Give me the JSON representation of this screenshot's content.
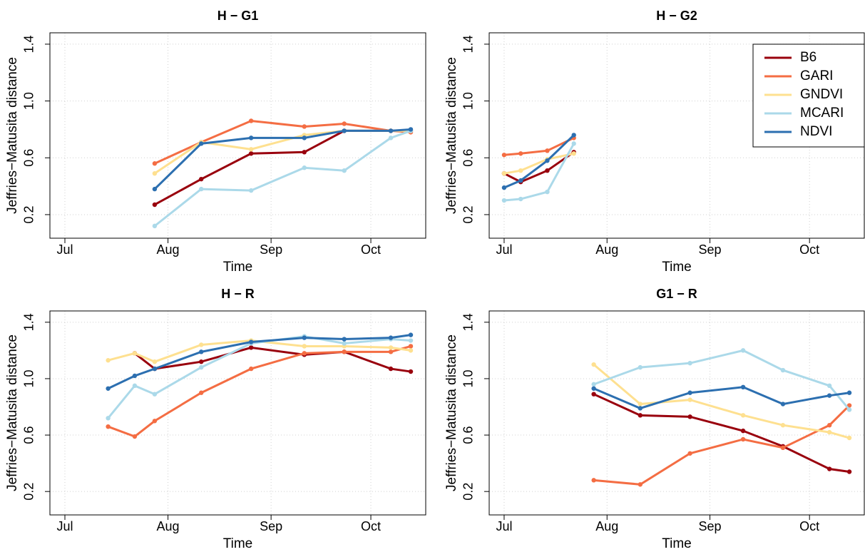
{
  "chart_data": [
    {
      "type": "line",
      "title": "H − G1",
      "xlabel": "Time",
      "ylabel": "Jeffries−Matusita distance",
      "x": [
        209,
        223,
        238,
        254,
        266,
        280,
        286
      ],
      "xlim": [
        177.5,
        290.5
      ],
      "xticks": [
        {
          "value": 182,
          "label": "Jul"
        },
        {
          "value": 213,
          "label": "Aug"
        },
        {
          "value": 244,
          "label": "Sep"
        },
        {
          "value": 274,
          "label": "Oct"
        }
      ],
      "ylim": [
        0.034,
        1.48
      ],
      "yticks": [
        0.2,
        0.6,
        {
          "value": 1,
          "label": "1.0"
        },
        1.4
      ],
      "grid": true,
      "series": [
        {
          "color": "#99000d",
          "values": [
            0.27,
            0.45,
            0.63,
            0.64,
            0.79,
            0.79,
            0.79
          ]
        },
        {
          "color": "#f46d43",
          "values": [
            0.56,
            0.71,
            0.86,
            0.82,
            0.84,
            0.79,
            0.78
          ]
        },
        {
          "color": "#fee090",
          "values": [
            0.49,
            0.71,
            0.66,
            0.76,
            0.79,
            0.79,
            0.79
          ]
        },
        {
          "color": "#abd9e9",
          "values": [
            0.12,
            0.38,
            0.37,
            0.53,
            0.51,
            0.74,
            0.79
          ]
        },
        {
          "color": "#2c6fb0",
          "values": [
            0.38,
            0.7,
            0.74,
            0.74,
            0.79,
            0.79,
            0.8
          ]
        }
      ]
    },
    {
      "type": "line",
      "title": "H − G2",
      "xlabel": "Time",
      "ylabel": "Jeffries−Matusita distance",
      "x": [
        182,
        187,
        195,
        203
      ],
      "xlim": [
        177.5,
        290.5
      ],
      "xticks": [
        {
          "value": 182,
          "label": "Jul"
        },
        {
          "value": 213,
          "label": "Aug"
        },
        {
          "value": 244,
          "label": "Sep"
        },
        {
          "value": 274,
          "label": "Oct"
        }
      ],
      "ylim": [
        0.034,
        1.48
      ],
      "yticks": [
        0.2,
        0.6,
        {
          "value": 1,
          "label": "1.0"
        },
        1.4
      ],
      "grid": true,
      "legend": "topright",
      "series": [
        {
          "name": "B6",
          "color": "#99000d",
          "values": [
            0.49,
            0.43,
            0.51,
            0.64
          ]
        },
        {
          "name": "GARI",
          "color": "#f46d43",
          "values": [
            0.62,
            0.63,
            0.65,
            0.74
          ]
        },
        {
          "name": "GNDVI",
          "color": "#fee090",
          "values": [
            0.49,
            0.51,
            0.59,
            0.63
          ]
        },
        {
          "name": "MCARI",
          "color": "#abd9e9",
          "values": [
            0.3,
            0.31,
            0.36,
            0.7
          ]
        },
        {
          "name": "NDVI",
          "color": "#2c6fb0",
          "values": [
            0.39,
            0.44,
            0.58,
            0.76
          ]
        }
      ]
    },
    {
      "type": "line",
      "title": "H − R",
      "xlabel": "Time",
      "ylabel": "Jeffries−Matusita distance",
      "x": [
        195,
        203,
        209,
        223,
        238,
        254,
        266,
        280,
        286
      ],
      "xlim": [
        177.5,
        290.5
      ],
      "xticks": [
        {
          "value": 182,
          "label": "Jul"
        },
        {
          "value": 213,
          "label": "Aug"
        },
        {
          "value": 244,
          "label": "Sep"
        },
        {
          "value": 274,
          "label": "Oct"
        }
      ],
      "ylim": [
        0.034,
        1.48
      ],
      "yticks": [
        0.2,
        0.6,
        {
          "value": 1,
          "label": "1.0"
        },
        1.4
      ],
      "grid": true,
      "series": [
        {
          "color": "#99000d",
          "values": [
            null,
            1.18,
            1.07,
            1.12,
            1.22,
            1.17,
            1.19,
            1.07,
            1.05
          ]
        },
        {
          "color": "#f46d43",
          "values": [
            0.66,
            0.59,
            0.7,
            0.9,
            1.07,
            1.18,
            1.19,
            1.19,
            1.23
          ]
        },
        {
          "color": "#fee090",
          "values": [
            1.13,
            1.18,
            1.12,
            1.24,
            1.27,
            1.23,
            1.23,
            1.22,
            1.2
          ]
        },
        {
          "color": "#abd9e9",
          "values": [
            0.72,
            0.95,
            0.89,
            1.08,
            1.25,
            1.3,
            1.25,
            1.28,
            1.27
          ]
        },
        {
          "color": "#2c6fb0",
          "values": [
            0.93,
            1.02,
            1.07,
            1.19,
            1.26,
            1.29,
            1.28,
            1.29,
            1.31
          ]
        }
      ]
    },
    {
      "type": "line",
      "title": "G1 − R",
      "xlabel": "Time",
      "ylabel": "Jeffries−Matusita distance",
      "x": [
        209,
        223,
        238,
        254,
        266,
        280,
        286
      ],
      "xlim": [
        177.5,
        290.5
      ],
      "xticks": [
        {
          "value": 182,
          "label": "Jul"
        },
        {
          "value": 213,
          "label": "Aug"
        },
        {
          "value": 244,
          "label": "Sep"
        },
        {
          "value": 274,
          "label": "Oct"
        }
      ],
      "ylim": [
        0.034,
        1.48
      ],
      "yticks": [
        0.2,
        0.6,
        {
          "value": 1,
          "label": "1.0"
        },
        1.4
      ],
      "grid": true,
      "series": [
        {
          "color": "#99000d",
          "values": [
            0.89,
            0.74,
            0.73,
            0.63,
            0.52,
            0.36,
            0.34
          ]
        },
        {
          "color": "#f46d43",
          "values": [
            0.28,
            0.25,
            0.47,
            0.57,
            0.51,
            0.67,
            0.81
          ]
        },
        {
          "color": "#fee090",
          "values": [
            1.1,
            0.82,
            0.85,
            0.74,
            0.67,
            0.62,
            0.58
          ]
        },
        {
          "color": "#abd9e9",
          "values": [
            0.96,
            1.08,
            1.11,
            1.2,
            1.06,
            0.95,
            0.78
          ]
        },
        {
          "color": "#2c6fb0",
          "values": [
            0.93,
            0.79,
            0.9,
            0.94,
            0.82,
            0.88,
            0.9
          ]
        }
      ]
    }
  ]
}
